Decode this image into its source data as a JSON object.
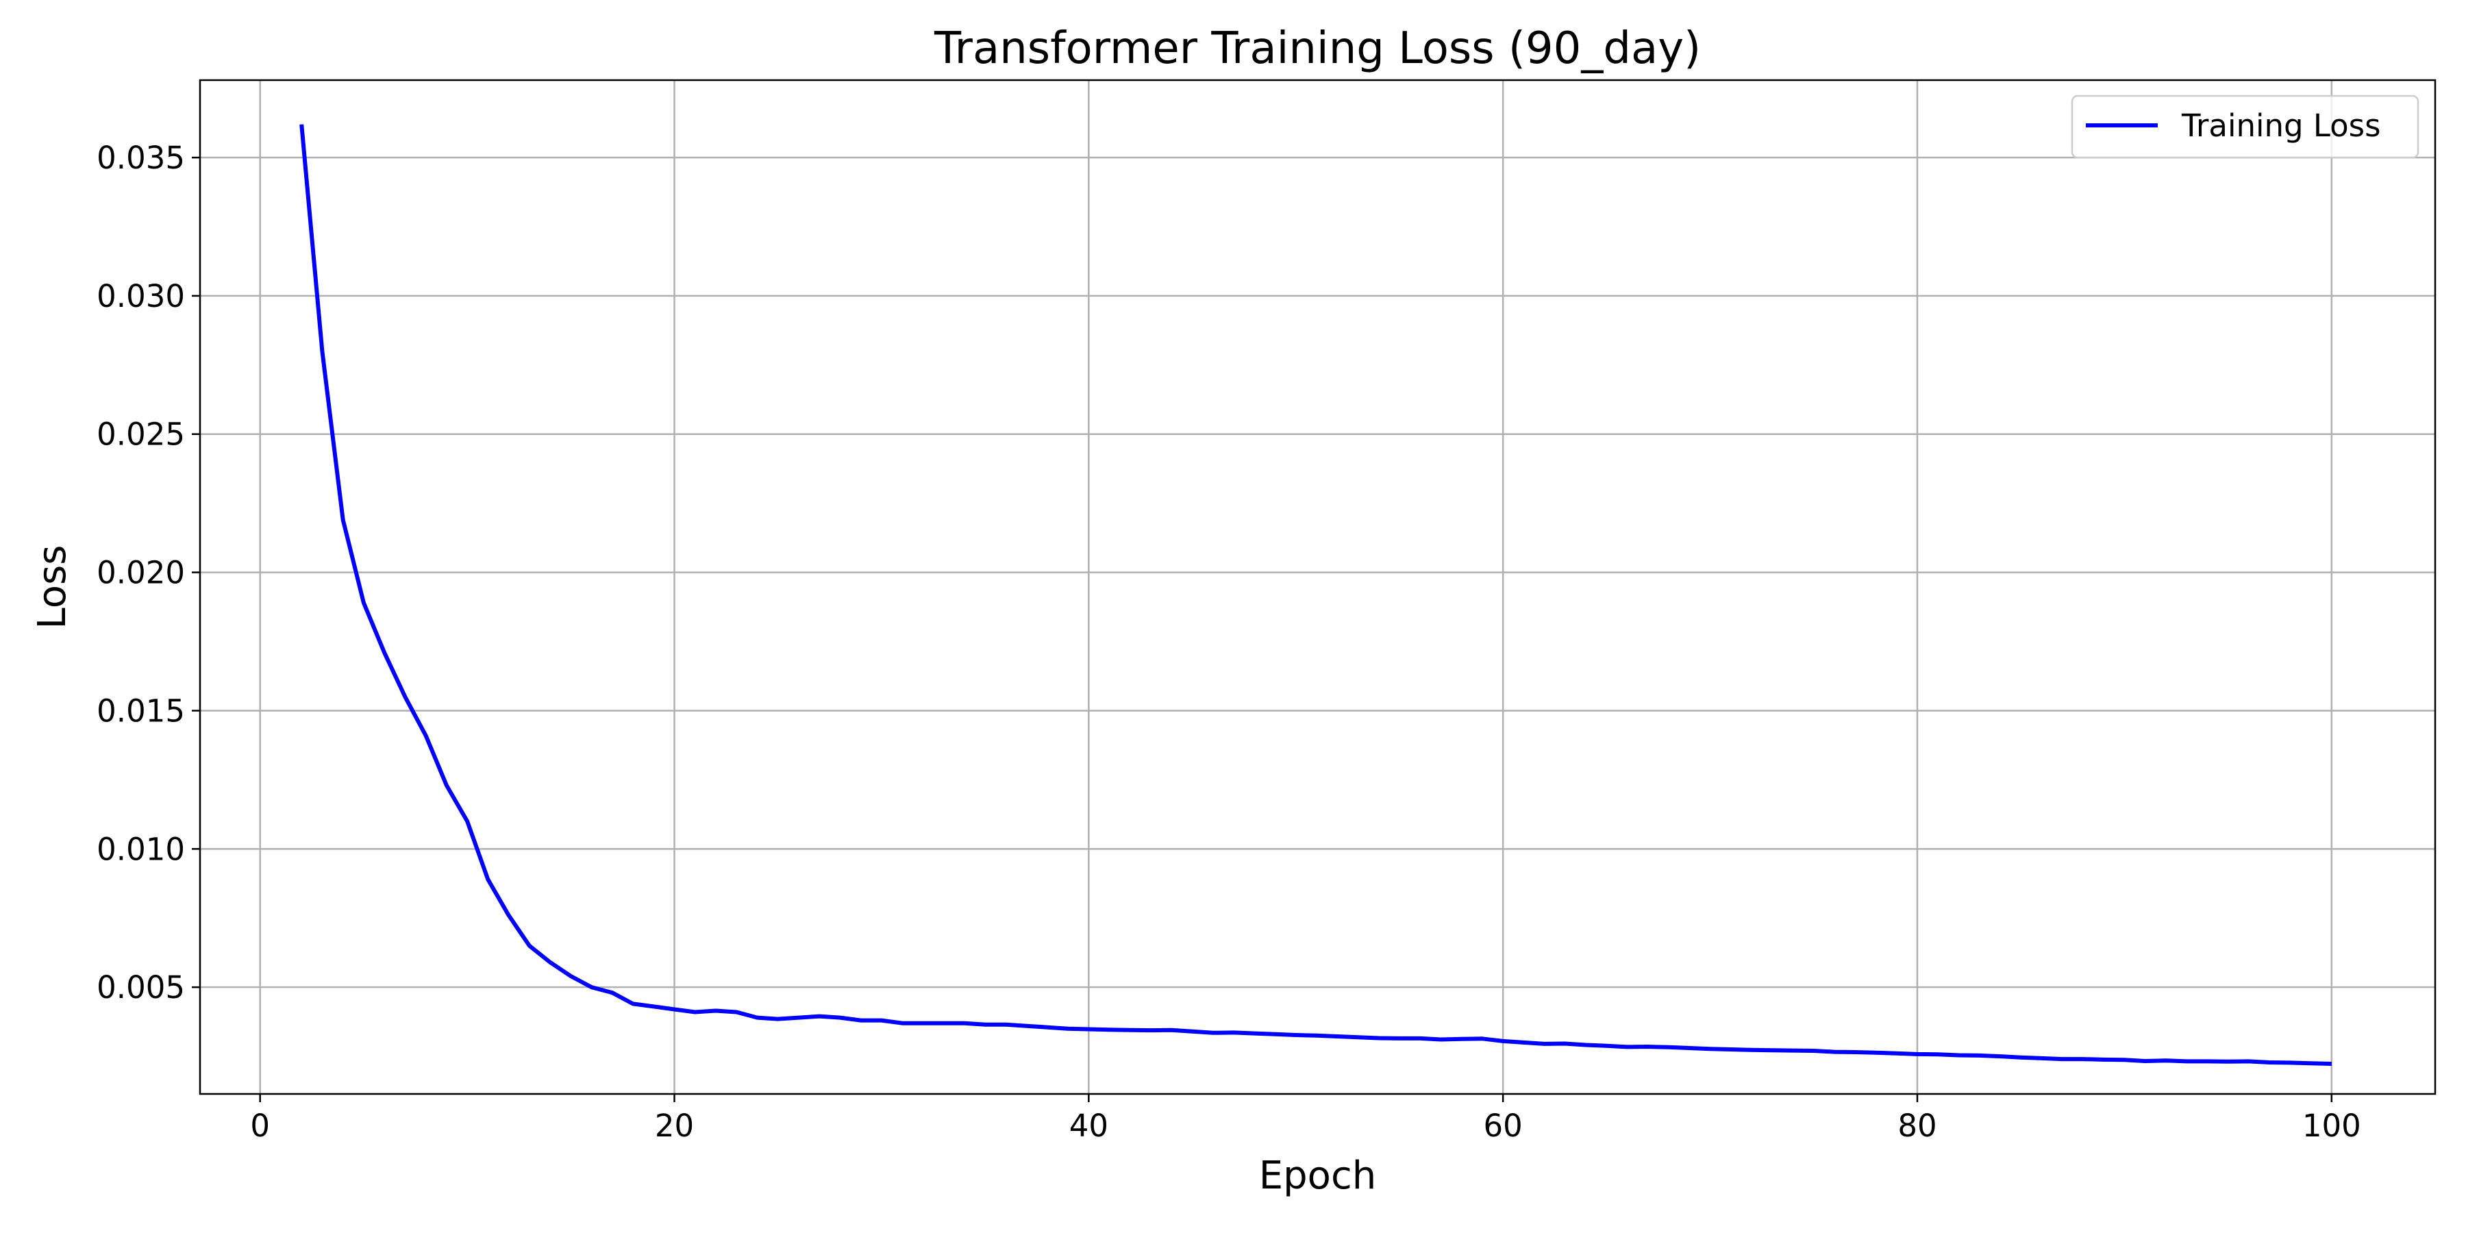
{
  "chart_data": {
    "type": "line",
    "title": "Transformer Training Loss (90_day)",
    "xlabel": "Epoch",
    "ylabel": "Loss",
    "xlim": [
      -2.9,
      105.0
    ],
    "ylim": [
      0.00114,
      0.0378
    ],
    "xticks": [
      0,
      20,
      40,
      60,
      80,
      100
    ],
    "xtick_labels": [
      "0",
      "20",
      "40",
      "60",
      "80",
      "100"
    ],
    "yticks": [
      0.005,
      0.01,
      0.015,
      0.02,
      0.025,
      0.03,
      0.035
    ],
    "ytick_labels": [
      "0.005",
      "0.010",
      "0.015",
      "0.020",
      "0.025",
      "0.030",
      "0.035"
    ],
    "grid": true,
    "legend_position": "top-right",
    "series": [
      {
        "name": "Training Loss",
        "color": "#0000ff",
        "x": [
          2,
          3,
          4,
          5,
          6,
          7,
          8,
          9,
          10,
          11,
          12,
          13,
          14,
          15,
          16,
          17,
          18,
          19,
          20,
          21,
          22,
          23,
          24,
          25,
          26,
          27,
          28,
          29,
          30,
          31,
          32,
          33,
          34,
          35,
          36,
          37,
          38,
          39,
          40,
          41,
          42,
          43,
          44,
          45,
          46,
          47,
          48,
          49,
          50,
          51,
          52,
          53,
          54,
          55,
          56,
          57,
          58,
          59,
          60,
          61,
          62,
          63,
          64,
          65,
          66,
          67,
          68,
          69,
          70,
          71,
          72,
          73,
          74,
          75,
          76,
          77,
          78,
          79,
          80,
          81,
          82,
          83,
          84,
          85,
          86,
          87,
          88,
          89,
          90,
          91,
          92,
          93,
          94,
          95,
          96,
          97,
          98,
          99,
          100
        ],
        "values": [
          0.0362,
          0.028,
          0.0219,
          0.0189,
          0.0171,
          0.0155,
          0.0141,
          0.0123,
          0.011,
          0.0089,
          0.0076,
          0.0065,
          0.0059,
          0.0054,
          0.005,
          0.0048,
          0.0044,
          0.0043,
          0.0042,
          0.0041,
          0.00415,
          0.0041,
          0.0039,
          0.00385,
          0.0039,
          0.00395,
          0.0039,
          0.0038,
          0.0038,
          0.0037,
          0.0037,
          0.0037,
          0.0037,
          0.00365,
          0.00365,
          0.0036,
          0.00355,
          0.0035,
          0.00348,
          0.00346,
          0.00345,
          0.00344,
          0.00345,
          0.0034,
          0.00335,
          0.00336,
          0.00333,
          0.0033,
          0.00327,
          0.00325,
          0.00322,
          0.00319,
          0.00316,
          0.00315,
          0.00315,
          0.00311,
          0.00313,
          0.00314,
          0.00305,
          0.003,
          0.00295,
          0.00296,
          0.00291,
          0.00288,
          0.00284,
          0.00285,
          0.00283,
          0.0028,
          0.00277,
          0.00275,
          0.00273,
          0.00272,
          0.00271,
          0.0027,
          0.00266,
          0.00265,
          0.00263,
          0.00261,
          0.00258,
          0.00257,
          0.00254,
          0.00253,
          0.0025,
          0.00246,
          0.00243,
          0.0024,
          0.0024,
          0.00238,
          0.00237,
          0.00233,
          0.00235,
          0.00232,
          0.00232,
          0.00231,
          0.00232,
          0.00228,
          0.00227,
          0.00225,
          0.00223
        ]
      }
    ]
  }
}
